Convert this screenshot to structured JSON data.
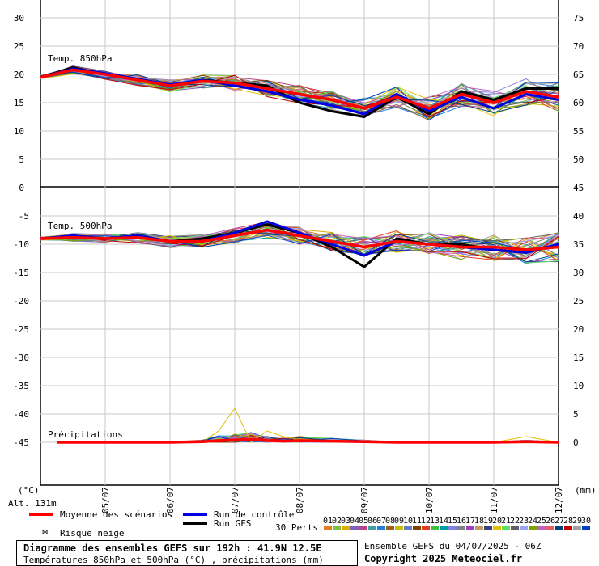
{
  "chart_data": {
    "type": "line",
    "title": "Diagramme des ensembles GEFS sur 192h : 41.9N 12.5E",
    "subtitle": "Températures 850hPa et 500hPa (°C) , précipitations (mm)",
    "run_info": "Ensemble GEFS du 04/07/2025 - 06Z",
    "copyright": "Copyright 2025 Meteociel.fr",
    "altitude": "Alt. 131m",
    "left_unit": "(°C)",
    "right_unit": "(mm)",
    "perts_label": "30 Perts.",
    "x_tick_labels": [
      "05/07",
      "06/07",
      "07/07",
      "08/07",
      "09/07",
      "10/07",
      "11/07",
      "12/07"
    ],
    "left_ticks_top": [
      "30",
      "25",
      "20",
      "15",
      "10",
      "5",
      "0"
    ],
    "right_ticks_top": [
      "75",
      "70",
      "65",
      "60",
      "55",
      "50"
    ],
    "left_ticks_bottom": [
      "-5",
      "-10",
      "-15",
      "-20",
      "-25",
      "-30",
      "-35",
      "-40",
      "-45"
    ],
    "right_ticks_bottom": [
      "45",
      "40",
      "35",
      "30",
      "25",
      "20",
      "15",
      "10",
      "5",
      "0"
    ],
    "legend": {
      "mean": "Moyenne des scénarios",
      "control": "Run de contrôle",
      "gfs": "Run GFS",
      "snow": "Risque neige"
    },
    "member_labels": [
      "01",
      "02",
      "03",
      "04",
      "05",
      "06",
      "07",
      "08",
      "09",
      "10",
      "11",
      "12",
      "13",
      "14",
      "15",
      "16",
      "17",
      "18",
      "19",
      "20",
      "21",
      "22",
      "23",
      "24",
      "25",
      "26",
      "27",
      "28",
      "29",
      "30"
    ],
    "member_colors": [
      "#e08020",
      "#80c040",
      "#e0b000",
      "#8060c0",
      "#c04080",
      "#40a0a0",
      "#2080e0",
      "#a06020",
      "#c0c000",
      "#6080c0",
      "#804000",
      "#e04020",
      "#40c040",
      "#00a0a0",
      "#8080e0",
      "#808080",
      "#a040c0",
      "#c0a060",
      "#404080",
      "#e0c000",
      "#60e060",
      "#606060",
      "#a0a0ff",
      "#80a000",
      "#c060c0",
      "#e06060",
      "#004080",
      "#c00000",
      "#a0a0a0",
      "#0040c0"
    ],
    "panels": [
      {
        "name": "Temp. 850hPa",
        "unit": "°C",
        "x_days": [
          0,
          0.5,
          1,
          1.5,
          2,
          2.5,
          3,
          3.5,
          4,
          4.5,
          5,
          5.5,
          6,
          6.5,
          7,
          7.5,
          8
        ],
        "series": [
          {
            "name": "Moyenne des scénarios",
            "values": [
              19.5,
              20.8,
              20.0,
              19.0,
              18.0,
              18.8,
              18.5,
              17.5,
              16.5,
              15.5,
              14.0,
              16.0,
              14.0,
              16.5,
              15.0,
              17.0,
              16.0
            ]
          },
          {
            "name": "Run de contrôle",
            "values": [
              19.5,
              21.0,
              20.2,
              19.2,
              18.2,
              19.0,
              18.0,
              17.0,
              15.5,
              14.5,
              13.0,
              16.5,
              13.5,
              16.0,
              14.0,
              16.5,
              15.5
            ]
          },
          {
            "name": "Run GFS",
            "values": [
              19.5,
              21.2,
              20.0,
              19.0,
              18.0,
              19.0,
              18.5,
              18.0,
              15.0,
              13.5,
              12.5,
              16.0,
              13.0,
              17.0,
              15.5,
              17.5,
              17.5
            ]
          }
        ]
      },
      {
        "name": "Temp. 500hPa",
        "unit": "°C",
        "x_days": [
          0,
          0.5,
          1,
          1.5,
          2,
          2.5,
          3,
          3.5,
          4,
          4.5,
          5,
          5.5,
          6,
          6.5,
          7,
          7.5,
          8
        ],
        "series": [
          {
            "name": "Moyenne des scénarios",
            "values": [
              -9.0,
              -8.8,
              -9.0,
              -8.8,
              -9.5,
              -9.5,
              -8.5,
              -7.5,
              -8.5,
              -9.5,
              -10.5,
              -9.5,
              -10.0,
              -10.5,
              -10.5,
              -11.0,
              -10.5
            ]
          },
          {
            "name": "Run de contrôle",
            "values": [
              -9.0,
              -8.5,
              -9.0,
              -8.5,
              -9.5,
              -9.5,
              -8.0,
              -6.0,
              -8.0,
              -10.0,
              -12.0,
              -9.5,
              -10.0,
              -10.5,
              -11.0,
              -11.5,
              -10.0
            ]
          },
          {
            "name": "Run GFS",
            "values": [
              -9.0,
              -8.5,
              -9.0,
              -8.5,
              -9.5,
              -9.0,
              -8.0,
              -6.5,
              -8.0,
              -10.5,
              -14.0,
              -9.0,
              -10.0,
              -10.0,
              -11.0,
              -11.5,
              -10.0
            ]
          }
        ]
      },
      {
        "name": "Précipitations",
        "unit": "mm",
        "x_days": [
          0.25,
          0.5,
          1,
          1.5,
          2,
          2.5,
          2.75,
          3,
          3.25,
          3.5,
          3.75,
          4,
          4.5,
          5,
          5.5,
          6,
          7,
          7.5,
          8
        ],
        "series": [
          {
            "name": "Moyenne des scénarios",
            "values": [
              0,
              0,
              0,
              0,
              0,
              0.1,
              0.3,
              0.4,
              0.5,
              0.3,
              0.2,
              0.3,
              0.2,
              0.1,
              0,
              0,
              0,
              0.1,
              0
            ]
          }
        ],
        "max_member_peak": 6.0
      }
    ]
  }
}
